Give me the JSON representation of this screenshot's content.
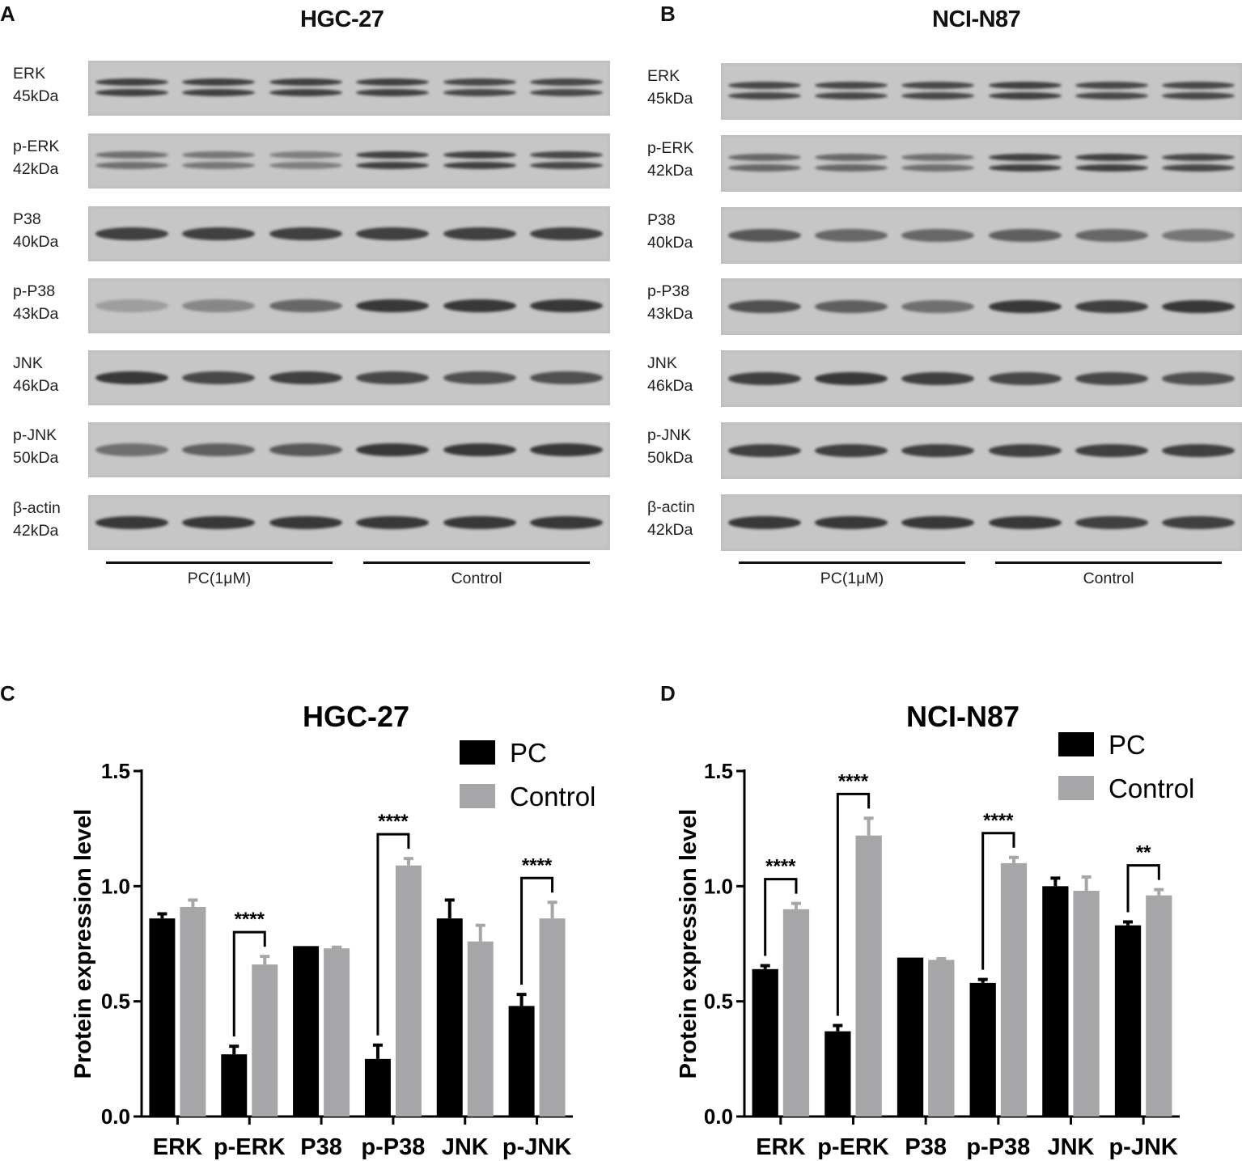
{
  "panels": {
    "A": {
      "letter": "A",
      "title": "HGC-27"
    },
    "B": {
      "letter": "B",
      "title": "NCI-N87"
    },
    "C": {
      "letter": "C"
    },
    "D": {
      "letter": "D"
    }
  },
  "blots": {
    "rows": [
      {
        "name": "ERK",
        "kda": "45kDa"
      },
      {
        "name": "p-ERK",
        "kda": "42kDa"
      },
      {
        "name": "P38",
        "kda": "40kDa"
      },
      {
        "name": "p-P38",
        "kda": "43kDa"
      },
      {
        "name": "JNK",
        "kda": "46kDa"
      },
      {
        "name": "p-JNK",
        "kda": "50kDa"
      },
      {
        "name": "β-actin",
        "kda": "42kDa"
      }
    ],
    "groups": [
      "PC(1μM)",
      "Control"
    ]
  },
  "chart_data": [
    {
      "type": "bar",
      "panel": "C",
      "title": "HGC-27",
      "ylabel": "Protein expression level",
      "ylim": [
        0,
        1.5
      ],
      "yticks": [
        "0.0",
        "0.5",
        "1.0",
        "1.5"
      ],
      "categories": [
        "ERK",
        "p-ERK",
        "P38",
        "p-P38",
        "JNK",
        "p-JNK"
      ],
      "legend": "top-right",
      "series": [
        {
          "name": "PC",
          "color": "#000000",
          "values": [
            0.86,
            0.27,
            0.74,
            0.25,
            0.86,
            0.48
          ],
          "errors": [
            0.02,
            0.035,
            0.0,
            0.06,
            0.08,
            0.05
          ]
        },
        {
          "name": "Control",
          "color": "#a6a6a8",
          "values": [
            0.91,
            0.66,
            0.73,
            1.09,
            0.76,
            0.86
          ],
          "errors": [
            0.03,
            0.035,
            0.005,
            0.03,
            0.07,
            0.07
          ]
        }
      ],
      "significance": [
        {
          "category": "p-ERK",
          "label": "****"
        },
        {
          "category": "p-P38",
          "label": "****"
        },
        {
          "category": "p-JNK",
          "label": "****"
        }
      ]
    },
    {
      "type": "bar",
      "panel": "D",
      "title": "NCI-N87",
      "ylabel": "Protein expression level",
      "ylim": [
        0,
        1.5
      ],
      "yticks": [
        "0.0",
        "0.5",
        "1.0",
        "1.5"
      ],
      "categories": [
        "ERK",
        "p-ERK",
        "P38",
        "p-P38",
        "JNK",
        "p-JNK"
      ],
      "legend": "top-right",
      "series": [
        {
          "name": "PC",
          "color": "#000000",
          "values": [
            0.64,
            0.37,
            0.69,
            0.58,
            1.0,
            0.83
          ],
          "errors": [
            0.015,
            0.025,
            0.0,
            0.015,
            0.035,
            0.015
          ]
        },
        {
          "name": "Control",
          "color": "#a6a6a8",
          "values": [
            0.9,
            1.22,
            0.68,
            1.1,
            0.98,
            0.96
          ],
          "errors": [
            0.025,
            0.075,
            0.005,
            0.025,
            0.06,
            0.025
          ]
        }
      ],
      "significance": [
        {
          "category": "ERK",
          "label": "****"
        },
        {
          "category": "p-ERK",
          "label": "****"
        },
        {
          "category": "p-P38",
          "label": "****"
        },
        {
          "category": "p-JNK",
          "label": "**"
        }
      ]
    }
  ]
}
